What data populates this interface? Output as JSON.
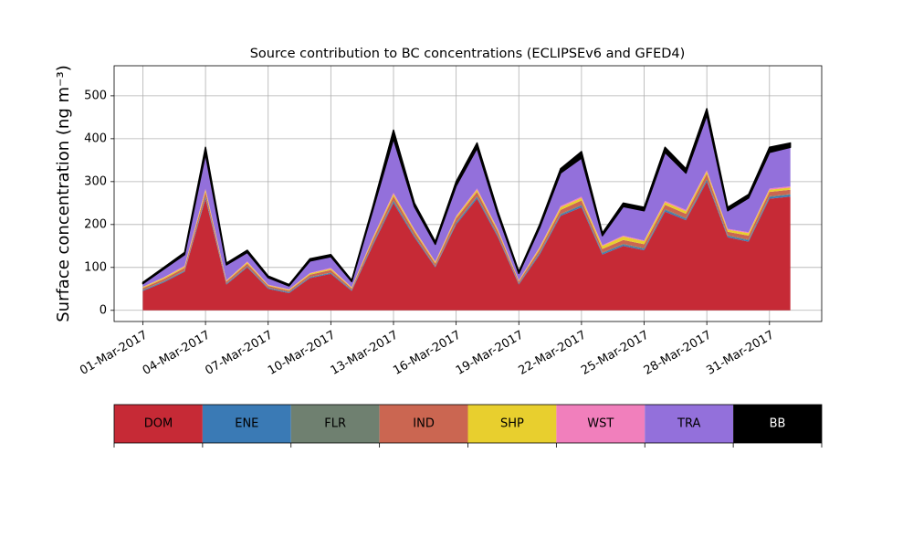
{
  "chart_data": {
    "type": "stacked_area",
    "title": "Source contribution to BC concentrations (ECLIPSEv6 and GFED4)",
    "ylabel": "Surface concentration (ng m⁻³)",
    "x": [
      "2017-03-01",
      "2017-03-02",
      "2017-03-03",
      "2017-03-04",
      "2017-03-05",
      "2017-03-06",
      "2017-03-07",
      "2017-03-08",
      "2017-03-09",
      "2017-03-10",
      "2017-03-11",
      "2017-03-12",
      "2017-03-13",
      "2017-03-14",
      "2017-03-15",
      "2017-03-16",
      "2017-03-17",
      "2017-03-18",
      "2017-03-19",
      "2017-03-20",
      "2017-03-21",
      "2017-03-22",
      "2017-03-23",
      "2017-03-24",
      "2017-03-25",
      "2017-03-26",
      "2017-03-27",
      "2017-03-28",
      "2017-03-29",
      "2017-03-30",
      "2017-03-31",
      "2017-04-01"
    ],
    "series": [
      {
        "name": "DOM",
        "color": "#c62a36",
        "values": [
          45,
          65,
          90,
          260,
          60,
          100,
          50,
          40,
          75,
          85,
          45,
          150,
          250,
          170,
          100,
          200,
          260,
          170,
          60,
          130,
          220,
          240,
          130,
          150,
          140,
          230,
          210,
          300,
          170,
          160,
          260,
          265
        ]
      },
      {
        "name": "ENE",
        "color": "#3a7ab5",
        "values": [
          2,
          2,
          2,
          4,
          2,
          2,
          2,
          2,
          2,
          2,
          2,
          3,
          4,
          3,
          2,
          3,
          4,
          3,
          2,
          3,
          3,
          4,
          3,
          3,
          3,
          4,
          3,
          4,
          3,
          3,
          4,
          4
        ]
      },
      {
        "name": "FLR",
        "color": "#6f8070",
        "values": [
          1,
          1,
          1,
          2,
          1,
          1,
          1,
          1,
          1,
          1,
          1,
          2,
          2,
          2,
          1,
          2,
          2,
          2,
          1,
          2,
          2,
          2,
          2,
          2,
          2,
          2,
          2,
          2,
          2,
          2,
          2,
          2
        ]
      },
      {
        "name": "IND",
        "color": "#cb6651",
        "values": [
          4,
          5,
          6,
          10,
          4,
          6,
          4,
          3,
          5,
          6,
          3,
          8,
          10,
          8,
          6,
          9,
          10,
          8,
          4,
          7,
          9,
          10,
          8,
          9,
          9,
          10,
          10,
          12,
          8,
          9,
          10,
          10
        ]
      },
      {
        "name": "SHP",
        "color": "#e8cf2e",
        "values": [
          2,
          3,
          3,
          5,
          2,
          3,
          2,
          2,
          3,
          3,
          2,
          4,
          5,
          4,
          3,
          4,
          5,
          4,
          2,
          4,
          6,
          6,
          7,
          8,
          7,
          6,
          6,
          6,
          5,
          6,
          5,
          5
        ]
      },
      {
        "name": "WST",
        "color": "#f17fbc",
        "values": [
          1,
          1,
          2,
          3,
          1,
          2,
          1,
          1,
          1,
          2,
          1,
          2,
          3,
          2,
          2,
          2,
          3,
          2,
          1,
          2,
          3,
          3,
          2,
          2,
          2,
          3,
          3,
          3,
          2,
          2,
          3,
          3
        ]
      },
      {
        "name": "TRA",
        "color": "#9370db",
        "values": [
          7,
          19,
          26,
          81,
          36,
          21,
          16,
          8,
          28,
          26,
          13,
          63,
          126,
          53,
          40,
          70,
          94,
          33,
          16,
          45,
          77,
          90,
          22,
          68,
          69,
          113,
          86,
          128,
          42,
          80,
          84,
          91
        ]
      },
      {
        "name": "BB",
        "color": "#000000",
        "values": [
          3,
          4,
          5,
          15,
          4,
          5,
          4,
          3,
          5,
          5,
          3,
          8,
          20,
          8,
          6,
          10,
          12,
          8,
          4,
          7,
          10,
          15,
          6,
          8,
          8,
          12,
          10,
          15,
          8,
          8,
          12,
          10
        ]
      }
    ],
    "xlim": [
      "2017-02-27T15:00:00Z",
      "2017-04-02T12:00:00Z"
    ],
    "xticks": [
      {
        "value": "2017-03-01",
        "label": "01-Mar-2017"
      },
      {
        "value": "2017-03-04",
        "label": "04-Mar-2017"
      },
      {
        "value": "2017-03-07",
        "label": "07-Mar-2017"
      },
      {
        "value": "2017-03-10",
        "label": "10-Mar-2017"
      },
      {
        "value": "2017-03-13",
        "label": "13-Mar-2017"
      },
      {
        "value": "2017-03-16",
        "label": "16-Mar-2017"
      },
      {
        "value": "2017-03-19",
        "label": "19-Mar-2017"
      },
      {
        "value": "2017-03-22",
        "label": "22-Mar-2017"
      },
      {
        "value": "2017-03-25",
        "label": "25-Mar-2017"
      },
      {
        "value": "2017-03-28",
        "label": "28-Mar-2017"
      },
      {
        "value": "2017-03-31",
        "label": "31-Mar-2017"
      }
    ],
    "ylim": [
      -26,
      570
    ],
    "yticks": [
      0,
      100,
      200,
      300,
      400,
      500
    ],
    "grid": true,
    "legend": "bottom"
  }
}
